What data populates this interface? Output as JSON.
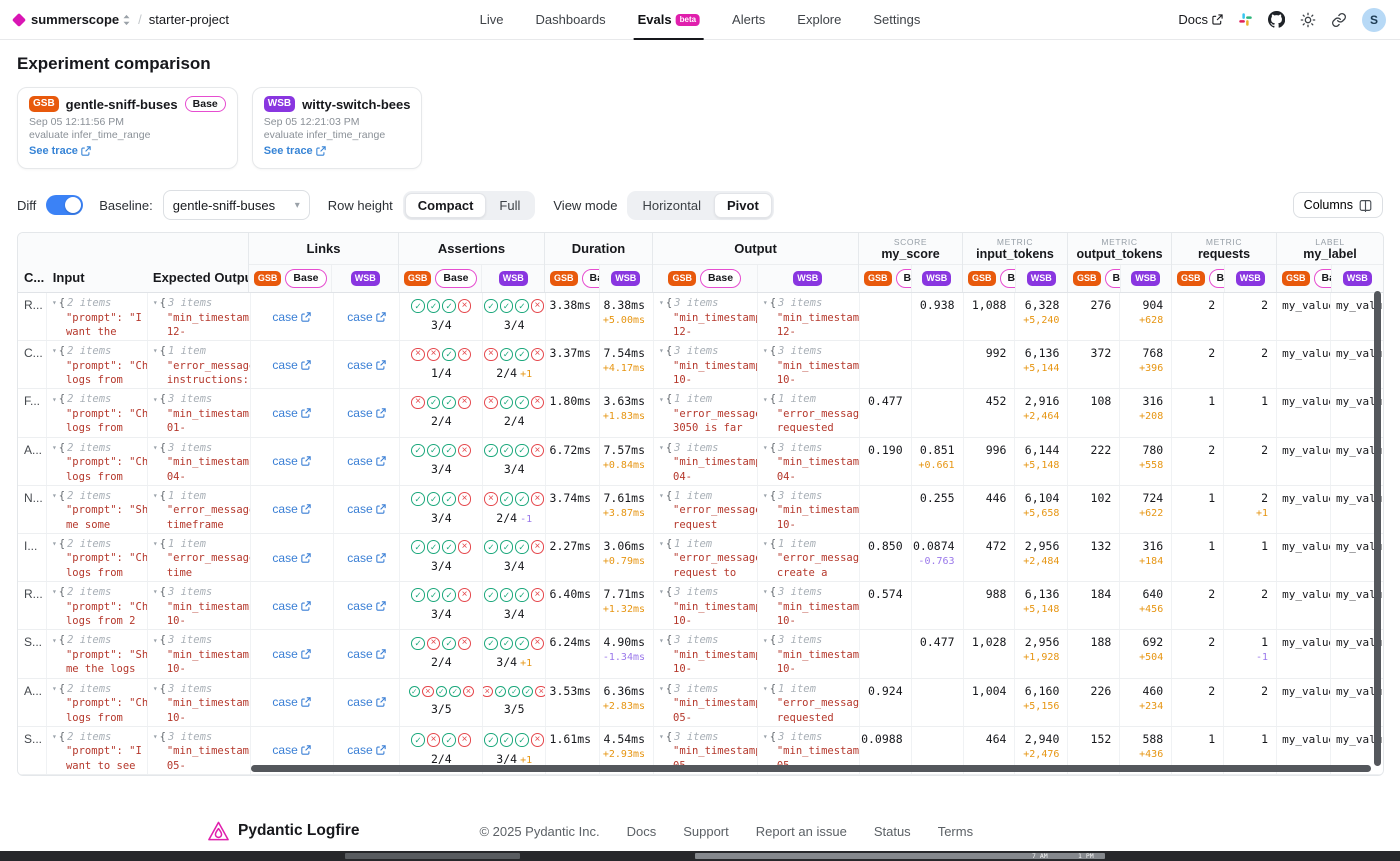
{
  "topbar": {
    "org": "summerscope",
    "project": "starter-project",
    "nav": [
      {
        "label": "Live"
      },
      {
        "label": "Dashboards"
      },
      {
        "label": "Evals",
        "badge": "beta",
        "active": true
      },
      {
        "label": "Alerts"
      },
      {
        "label": "Explore"
      },
      {
        "label": "Settings"
      }
    ],
    "docs_label": "Docs",
    "avatar_initial": "S"
  },
  "page_title": "Experiment comparison",
  "experiments": [
    {
      "abbr": "GSB",
      "name": "gentle-sniff-buses",
      "base_label": "Base",
      "timestamp": "Sep 05 12:11:56 PM",
      "task": "evaluate infer_time_range",
      "trace_label": "See trace",
      "color": "#e8590c"
    },
    {
      "abbr": "WSB",
      "name": "witty-switch-bees",
      "timestamp": "Sep 05 12:21:03 PM",
      "task": "evaluate infer_time_range",
      "trace_label": "See trace",
      "color": "#8936e0"
    }
  ],
  "controls": {
    "diff_label": "Diff",
    "diff_on": true,
    "baseline_label": "Baseline:",
    "baseline_value": "gentle-sniff-buses",
    "row_height_label": "Row height",
    "row_height_options": [
      "Compact",
      "Full"
    ],
    "row_height_selected": "Compact",
    "view_mode_label": "View mode",
    "view_mode_options": [
      "Horizontal",
      "Pivot"
    ],
    "view_mode_selected": "Pivot",
    "columns_button": "Columns"
  },
  "table": {
    "col_headers": {
      "case": "C...",
      "input": "Input",
      "expected": "Expected Output"
    },
    "badges": {
      "gsb": "GSB",
      "base": "Base",
      "wsb": "WSB"
    },
    "glyphs": {
      "brace": "{",
      "expand": "▾",
      "pass": "✓",
      "fail": "×"
    },
    "groups": [
      {
        "key": "links",
        "label": "Links"
      },
      {
        "key": "assertions",
        "label": "Assertions"
      },
      {
        "key": "duration",
        "label": "Duration"
      },
      {
        "key": "output",
        "label": "Output"
      },
      {
        "key": "score",
        "kicker": "SCORE",
        "label": "my_score"
      },
      {
        "key": "input_tokens",
        "kicker": "METRIC",
        "label": "input_tokens"
      },
      {
        "key": "output_tokens",
        "kicker": "METRIC",
        "label": "output_tokens"
      },
      {
        "key": "requests",
        "kicker": "METRIC",
        "label": "requests"
      },
      {
        "key": "label",
        "kicker": "LABEL",
        "label": "my_label"
      }
    ],
    "case_link_label": "case",
    "rows": [
      {
        "case": "R...",
        "input": {
          "count": "2 items",
          "l1": "\"prompt\": \"I",
          "l2": "want the"
        },
        "expected": {
          "count": "3 items",
          "l1": "\"min_timestamp",
          "l2": "12-"
        },
        "assertions": {
          "gsb": {
            "icons": "cccx",
            "score": "3/4",
            "delta": ""
          },
          "wsb": {
            "icons": "cccx",
            "score": "3/4",
            "delta": ""
          }
        },
        "duration": {
          "gsb": "3.38ms",
          "wsb": "8.38ms",
          "diff": "+5.00ms"
        },
        "output": {
          "gsb": {
            "count": "3 items",
            "l1": "\"min_timestamp",
            "l2": "12-"
          },
          "wsb": {
            "count": "3 items",
            "l1": "\"min_timestamp",
            "l2": "12-"
          }
        },
        "score": {
          "gsb": "",
          "wsb": "0.938",
          "diff": ""
        },
        "input_tokens": {
          "gsb": "1,088",
          "wsb": "6,328",
          "diff": "+5,240"
        },
        "output_tokens": {
          "gsb": "276",
          "wsb": "904",
          "diff": "+628"
        },
        "requests": {
          "gsb": "2",
          "wsb": "2",
          "diff": ""
        },
        "label": {
          "gsb": "my_value_",
          "wsb": "my_value_"
        }
      },
      {
        "case": "C...",
        "input": {
          "count": "2 items",
          "l1": "\"prompt\": \"Ch",
          "l2": "logs from"
        },
        "expected": {
          "count": "1 item",
          "l1": "\"error_message",
          "l2": "instructions:"
        },
        "assertions": {
          "gsb": {
            "icons": "xxcx",
            "score": "1/4",
            "delta": ""
          },
          "wsb": {
            "icons": "xccx",
            "score": "2/4",
            "delta": "+1"
          }
        },
        "duration": {
          "gsb": "3.37ms",
          "wsb": "7.54ms",
          "diff": "+4.17ms"
        },
        "output": {
          "gsb": {
            "count": "3 items",
            "l1": "\"min_timestamp",
            "l2": "10-"
          },
          "wsb": {
            "count": "3 items",
            "l1": "\"min_timestamp",
            "l2": "10-"
          }
        },
        "score": {
          "gsb": "",
          "wsb": "",
          "diff": ""
        },
        "input_tokens": {
          "gsb": "992",
          "wsb": "6,136",
          "diff": "+5,144"
        },
        "output_tokens": {
          "gsb": "372",
          "wsb": "768",
          "diff": "+396"
        },
        "requests": {
          "gsb": "2",
          "wsb": "2",
          "diff": ""
        },
        "label": {
          "gsb": "my_value_",
          "wsb": "my_value_"
        }
      },
      {
        "case": "F...",
        "input": {
          "count": "2 items",
          "l1": "\"prompt\": \"Ch",
          "l2": "logs from"
        },
        "expected": {
          "count": "3 items",
          "l1": "\"min_timestamp",
          "l2": "01-"
        },
        "assertions": {
          "gsb": {
            "icons": "xccx",
            "score": "2/4",
            "delta": ""
          },
          "wsb": {
            "icons": "xccx",
            "score": "2/4",
            "delta": ""
          }
        },
        "duration": {
          "gsb": "1.80ms",
          "wsb": "3.63ms",
          "diff": "+1.83ms"
        },
        "output": {
          "gsb": {
            "count": "1 item",
            "l1": "\"error_message",
            "l2": "3050 is far"
          },
          "wsb": {
            "count": "1 item",
            "l1": "\"error_message",
            "l2": "requested"
          }
        },
        "score": {
          "gsb": "0.477",
          "wsb": "",
          "diff": ""
        },
        "input_tokens": {
          "gsb": "452",
          "wsb": "2,916",
          "diff": "+2,464"
        },
        "output_tokens": {
          "gsb": "108",
          "wsb": "316",
          "diff": "+208"
        },
        "requests": {
          "gsb": "1",
          "wsb": "1",
          "diff": ""
        },
        "label": {
          "gsb": "my_value_",
          "wsb": "my_value_"
        }
      },
      {
        "case": "A...",
        "input": {
          "count": "2 items",
          "l1": "\"prompt\": \"Ch",
          "l2": "logs from"
        },
        "expected": {
          "count": "3 items",
          "l1": "\"min_timestamp",
          "l2": "04-"
        },
        "assertions": {
          "gsb": {
            "icons": "cccx",
            "score": "3/4",
            "delta": ""
          },
          "wsb": {
            "icons": "cccx",
            "score": "3/4",
            "delta": ""
          }
        },
        "duration": {
          "gsb": "6.72ms",
          "wsb": "7.57ms",
          "diff": "+0.84ms"
        },
        "output": {
          "gsb": {
            "count": "3 items",
            "l1": "\"min_timestamp",
            "l2": "04-"
          },
          "wsb": {
            "count": "3 items",
            "l1": "\"min_timestamp",
            "l2": "04-"
          }
        },
        "score": {
          "gsb": "0.190",
          "wsb": "0.851",
          "diff": "+0.661"
        },
        "input_tokens": {
          "gsb": "996",
          "wsb": "6,144",
          "diff": "+5,148"
        },
        "output_tokens": {
          "gsb": "222",
          "wsb": "780",
          "diff": "+558"
        },
        "requests": {
          "gsb": "2",
          "wsb": "2",
          "diff": ""
        },
        "label": {
          "gsb": "my_value_",
          "wsb": "my_value_"
        }
      },
      {
        "case": "N...",
        "input": {
          "count": "2 items",
          "l1": "\"prompt\": \"Sh",
          "l2": "me some"
        },
        "expected": {
          "count": "1 item",
          "l1": "\"error_message",
          "l2": "timeframe"
        },
        "assertions": {
          "gsb": {
            "icons": "cccx",
            "score": "3/4",
            "delta": ""
          },
          "wsb": {
            "icons": "xccx",
            "score": "2/4",
            "delta": "-1"
          }
        },
        "duration": {
          "gsb": "3.74ms",
          "wsb": "7.61ms",
          "diff": "+3.87ms"
        },
        "output": {
          "gsb": {
            "count": "1 item",
            "l1": "\"error_message",
            "l2": "request"
          },
          "wsb": {
            "count": "3 items",
            "l1": "\"min_timestamp",
            "l2": "10-"
          }
        },
        "score": {
          "gsb": "",
          "wsb": "0.255",
          "diff": ""
        },
        "input_tokens": {
          "gsb": "446",
          "wsb": "6,104",
          "diff": "+5,658"
        },
        "output_tokens": {
          "gsb": "102",
          "wsb": "724",
          "diff": "+622"
        },
        "requests": {
          "gsb": "1",
          "wsb": "2",
          "diff": "+1"
        },
        "label": {
          "gsb": "my_value_",
          "wsb": "my_value_"
        }
      },
      {
        "case": "I...",
        "input": {
          "count": "2 items",
          "l1": "\"prompt\": \"Ch",
          "l2": "logs from"
        },
        "expected": {
          "count": "1 item",
          "l1": "\"error_message",
          "l2": "time"
        },
        "assertions": {
          "gsb": {
            "icons": "cccx",
            "score": "3/4",
            "delta": ""
          },
          "wsb": {
            "icons": "cccx",
            "score": "3/4",
            "delta": ""
          }
        },
        "duration": {
          "gsb": "2.27ms",
          "wsb": "3.06ms",
          "diff": "+0.79ms"
        },
        "output": {
          "gsb": {
            "count": "1 item",
            "l1": "\"error_message",
            "l2": "request to"
          },
          "wsb": {
            "count": "1 item",
            "l1": "\"error_message",
            "l2": "create a"
          }
        },
        "score": {
          "gsb": "0.850",
          "wsb": "0.0874",
          "diff": "-0.763"
        },
        "input_tokens": {
          "gsb": "472",
          "wsb": "2,956",
          "diff": "+2,484"
        },
        "output_tokens": {
          "gsb": "132",
          "wsb": "316",
          "diff": "+184"
        },
        "requests": {
          "gsb": "1",
          "wsb": "1",
          "diff": ""
        },
        "label": {
          "gsb": "my_value_",
          "wsb": "my_value_"
        }
      },
      {
        "case": "R...",
        "input": {
          "count": "2 items",
          "l1": "\"prompt\": \"Ch",
          "l2": "logs from 2"
        },
        "expected": {
          "count": "3 items",
          "l1": "\"min_timestamp",
          "l2": "10-"
        },
        "assertions": {
          "gsb": {
            "icons": "cccx",
            "score": "3/4",
            "delta": ""
          },
          "wsb": {
            "icons": "cccx",
            "score": "3/4",
            "delta": ""
          }
        },
        "duration": {
          "gsb": "6.40ms",
          "wsb": "7.71ms",
          "diff": "+1.32ms"
        },
        "output": {
          "gsb": {
            "count": "3 items",
            "l1": "\"min_timestamp",
            "l2": "10-"
          },
          "wsb": {
            "count": "3 items",
            "l1": "\"min_timestamp",
            "l2": "10-"
          }
        },
        "score": {
          "gsb": "0.574",
          "wsb": "",
          "diff": ""
        },
        "input_tokens": {
          "gsb": "988",
          "wsb": "6,136",
          "diff": "+5,148"
        },
        "output_tokens": {
          "gsb": "184",
          "wsb": "640",
          "diff": "+456"
        },
        "requests": {
          "gsb": "2",
          "wsb": "2",
          "diff": ""
        },
        "label": {
          "gsb": "my_value_",
          "wsb": "my_value_"
        }
      },
      {
        "case": "S...",
        "input": {
          "count": "2 items",
          "l1": "\"prompt\": \"Sh",
          "l2": "me the logs"
        },
        "expected": {
          "count": "3 items",
          "l1": "\"min_timestamp",
          "l2": "10-"
        },
        "assertions": {
          "gsb": {
            "icons": "cxcx",
            "score": "2/4",
            "delta": ""
          },
          "wsb": {
            "icons": "cccx",
            "score": "3/4",
            "delta": "+1"
          }
        },
        "duration": {
          "gsb": "6.24ms",
          "wsb": "4.90ms",
          "diff": "-1.34ms"
        },
        "output": {
          "gsb": {
            "count": "3 items",
            "l1": "\"min_timestamp",
            "l2": "10-"
          },
          "wsb": {
            "count": "3 items",
            "l1": "\"min_timestamp",
            "l2": "10-"
          }
        },
        "score": {
          "gsb": "",
          "wsb": "0.477",
          "diff": ""
        },
        "input_tokens": {
          "gsb": "1,028",
          "wsb": "2,956",
          "diff": "+1,928"
        },
        "output_tokens": {
          "gsb": "188",
          "wsb": "692",
          "diff": "+504"
        },
        "requests": {
          "gsb": "2",
          "wsb": "1",
          "diff": "-1"
        },
        "label": {
          "gsb": "my_value_",
          "wsb": "my_value_"
        }
      },
      {
        "case": "A...",
        "input": {
          "count": "2 items",
          "l1": "\"prompt\": \"Ch",
          "l2": "logs from"
        },
        "expected": {
          "count": "3 items",
          "l1": "\"min_timestamp",
          "l2": "10-"
        },
        "assertions": {
          "gsb": {
            "icons": "cxccx",
            "score": "3/5",
            "delta": ""
          },
          "wsb": {
            "icons": "xcccx",
            "score": "3/5",
            "delta": ""
          }
        },
        "duration": {
          "gsb": "3.53ms",
          "wsb": "6.36ms",
          "diff": "+2.83ms"
        },
        "output": {
          "gsb": {
            "count": "3 items",
            "l1": "\"min_timestamp",
            "l2": "05-"
          },
          "wsb": {
            "count": "1 item",
            "l1": "\"error_message",
            "l2": "requested"
          }
        },
        "score": {
          "gsb": "0.924",
          "wsb": "",
          "diff": ""
        },
        "input_tokens": {
          "gsb": "1,004",
          "wsb": "6,160",
          "diff": "+5,156"
        },
        "output_tokens": {
          "gsb": "226",
          "wsb": "460",
          "diff": "+234"
        },
        "requests": {
          "gsb": "2",
          "wsb": "2",
          "diff": ""
        },
        "label": {
          "gsb": "my_value_",
          "wsb": "my_value_"
        }
      },
      {
        "case": "S...",
        "input": {
          "count": "2 items",
          "l1": "\"prompt\": \"I",
          "l2": "want to see"
        },
        "expected": {
          "count": "3 items",
          "l1": "\"min_timestamp",
          "l2": "05-"
        },
        "assertions": {
          "gsb": {
            "icons": "cxcx",
            "score": "2/4",
            "delta": ""
          },
          "wsb": {
            "icons": "cccx",
            "score": "3/4",
            "delta": "+1"
          }
        },
        "duration": {
          "gsb": "1.61ms",
          "wsb": "4.54ms",
          "diff": "+2.93ms"
        },
        "output": {
          "gsb": {
            "count": "3 items",
            "l1": "\"min_timestamp",
            "l2": "05-"
          },
          "wsb": {
            "count": "3 items",
            "l1": "\"min_timestamp",
            "l2": "05-"
          }
        },
        "score": {
          "gsb": "0.0988",
          "wsb": "",
          "diff": ""
        },
        "input_tokens": {
          "gsb": "464",
          "wsb": "2,940",
          "diff": "+2,476"
        },
        "output_tokens": {
          "gsb": "152",
          "wsb": "588",
          "diff": "+436"
        },
        "requests": {
          "gsb": "1",
          "wsb": "1",
          "diff": ""
        },
        "label": {
          "gsb": "my_value_",
          "wsb": "my_value_"
        }
      }
    ]
  },
  "footer": {
    "brand": "Pydantic Logfire",
    "copyright": "© 2025 Pydantic Inc.",
    "links": [
      "Docs",
      "Support",
      "Report an issue",
      "Status",
      "Terms"
    ]
  },
  "taskbar": {
    "times": [
      "7 AM",
      "1 PM"
    ]
  }
}
